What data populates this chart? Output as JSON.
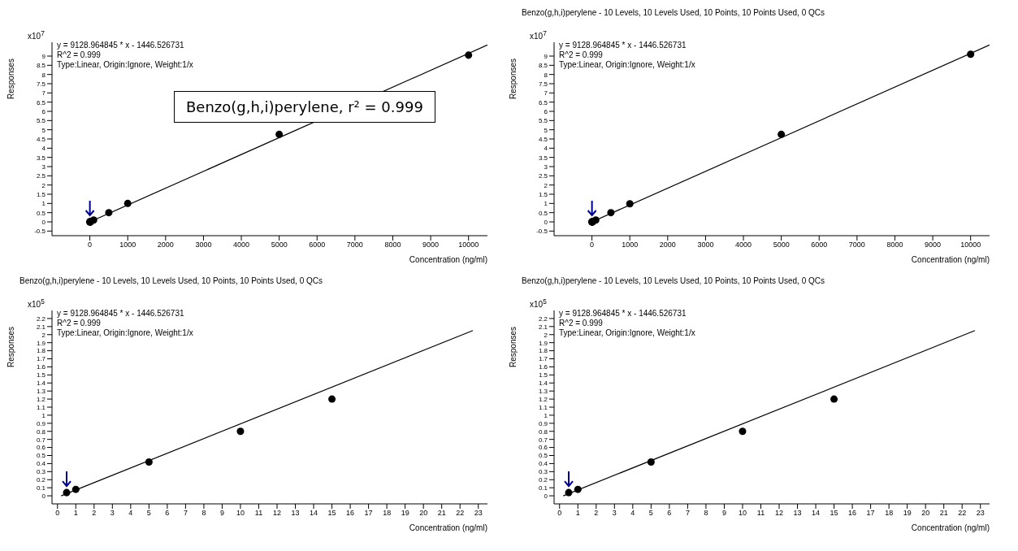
{
  "chart_data": [
    {
      "type": "scatter",
      "ylabel": "Responses",
      "xlabel": "Concentration (ng/ml)",
      "annotations": [
        "x10$^{7}$",
        "y = 9128.964845 * x  - 1446.526731",
        "R^2 = 0.999",
        "Type:Linear, Origin:Ignore, Weight:1/x",
        "Benzo(g,h,i)perylene, r² = 0.999"
      ],
      "xlim": [
        -1000,
        10500
      ],
      "xticks": [
        0,
        1000,
        2000,
        3000,
        4000,
        5000,
        6000,
        7000,
        8000,
        9000,
        10000
      ],
      "ylim": [
        -0.75,
        9.75
      ],
      "yticks": [
        -0.5,
        0,
        0.5,
        1,
        1.5,
        2,
        2.5,
        3,
        3.5,
        4,
        4.5,
        5,
        5.5,
        6,
        6.5,
        7,
        7.5,
        8,
        8.5,
        9
      ],
      "grid": false,
      "legend": false,
      "series": [
        {
          "color": "#000000",
          "marker": "circle",
          "x": [
            0.5,
            1,
            5,
            10,
            15,
            100,
            500,
            1000,
            5000,
            10000
          ],
          "values": [
            0,
            0,
            0,
            0,
            0,
            0.1,
            0.5,
            1,
            4.75,
            9.05
          ]
        },
        {
          "type": "line",
          "color": "#000000",
          "x": [
            0,
            10500
          ],
          "values": [
            0,
            9.6
          ]
        }
      ]
    },
    {
      "type": "scatter",
      "title": "Benzo(g,h,i)perylene - 10 Levels, 10 Levels Used, 10 Points, 10 Points Used, 0 QCs",
      "ylabel": "Responses",
      "xlabel": "Concentration (ng/ml)",
      "annotations": [
        "x10$^{7}$",
        "y = 9128.964845 * x  - 1446.526731",
        "R^2 = 0.999",
        "Type:Linear, Origin:Ignore, Weight:1/x"
      ],
      "xlim": [
        -1000,
        10500
      ],
      "xticks": [
        0,
        1000,
        2000,
        3000,
        4000,
        5000,
        6000,
        7000,
        8000,
        9000,
        10000
      ],
      "ylim": [
        -0.75,
        9.75
      ],
      "yticks": [
        -0.5,
        0,
        0.5,
        1,
        1.5,
        2,
        2.5,
        3,
        3.5,
        4,
        4.5,
        5,
        5.5,
        6,
        6.5,
        7,
        7.5,
        8,
        8.5,
        9
      ],
      "grid": false,
      "legend": false,
      "series": [
        {
          "color": "#000000",
          "marker": "circle",
          "x": [
            0.5,
            1,
            5,
            10,
            15,
            100,
            500,
            1000,
            5000,
            10000
          ],
          "values": [
            0,
            0,
            0,
            0,
            0,
            0.1,
            0.5,
            0.98,
            4.75,
            9.1
          ]
        },
        {
          "type": "line",
          "color": "#000000",
          "x": [
            0,
            10500
          ],
          "values": [
            0,
            9.6
          ]
        }
      ]
    },
    {
      "type": "scatter",
      "title": "Benzo(g,h,i)perylene - 10 Levels, 10 Levels Used, 10 Points, 10 Points Used, 0 QCs",
      "ylabel": "Responses",
      "xlabel": "Concentration (ng/ml)",
      "annotations": [
        "x10$^{5}$",
        "y = 9128.964845 * x  - 1446.526731",
        "R^2 = 0.999",
        "Type:Linear, Origin:Ignore, Weight:1/x"
      ],
      "xlim": [
        -0.3,
        23.5
      ],
      "xticks": [
        0,
        1,
        2,
        3,
        4,
        5,
        6,
        7,
        8,
        9,
        10,
        11,
        12,
        13,
        14,
        15,
        16,
        17,
        18,
        19,
        20,
        21,
        22,
        23
      ],
      "ylim": [
        -0.1,
        2.3
      ],
      "yticks": [
        0,
        0.1,
        0.2,
        0.3,
        0.4,
        0.5,
        0.6,
        0.7,
        0.8,
        0.9,
        1,
        1.1,
        1.2,
        1.3,
        1.4,
        1.5,
        1.6,
        1.7,
        1.8,
        1.9,
        2,
        2.1,
        2.2
      ],
      "grid": false,
      "legend": false,
      "series": [
        {
          "color": "#000000",
          "marker": "circle",
          "x": [
            0.5,
            1,
            5,
            10,
            15
          ],
          "values": [
            0.04,
            0.08,
            0.42,
            0.8,
            1.2
          ]
        },
        {
          "type": "line",
          "color": "#000000",
          "x": [
            0.2,
            22.7
          ],
          "values": [
            0,
            2.05
          ]
        }
      ]
    },
    {
      "type": "scatter",
      "title": "Benzo(g,h,i)perylene - 10 Levels, 10 Levels Used, 10 Points, 10 Points Used, 0 QCs",
      "ylabel": "Responses",
      "xlabel": "Concentration (ng/ml)",
      "annotations": [
        "x10$^{5}$",
        "y = 9128.964845 * x  - 1446.526731",
        "R^2 = 0.999",
        "Type:Linear, Origin:Ignore, Weight:1/x"
      ],
      "xlim": [
        -0.3,
        23.5
      ],
      "xticks": [
        0,
        1,
        2,
        3,
        4,
        5,
        6,
        7,
        8,
        9,
        10,
        11,
        12,
        13,
        14,
        15,
        16,
        17,
        18,
        19,
        20,
        21,
        22,
        23
      ],
      "ylim": [
        -0.1,
        2.3
      ],
      "yticks": [
        0,
        0.1,
        0.2,
        0.3,
        0.4,
        0.5,
        0.6,
        0.7,
        0.8,
        0.9,
        1,
        1.1,
        1.2,
        1.3,
        1.4,
        1.5,
        1.6,
        1.7,
        1.8,
        1.9,
        2,
        2.1,
        2.2
      ],
      "grid": false,
      "legend": false,
      "series": [
        {
          "color": "#000000",
          "marker": "circle",
          "x": [
            0.5,
            1,
            5,
            10,
            15
          ],
          "values": [
            0.04,
            0.08,
            0.42,
            0.8,
            1.2
          ]
        },
        {
          "type": "line",
          "color": "#000000",
          "x": [
            0.2,
            22.7
          ],
          "values": [
            0,
            2.05
          ]
        }
      ]
    }
  ]
}
